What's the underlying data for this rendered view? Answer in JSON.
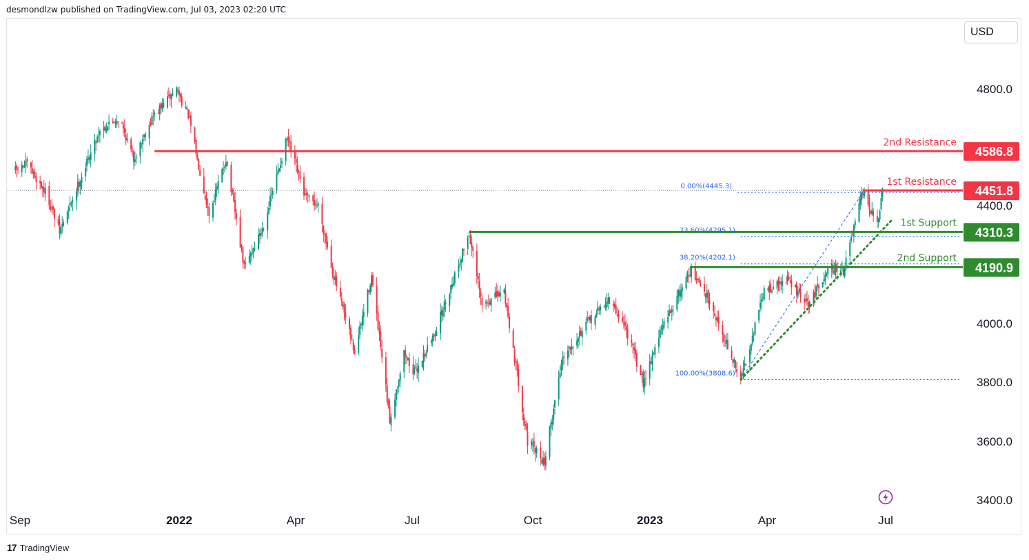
{
  "header": {
    "published": "desmondlzw published on TradingView.com, Jul 03, 2023 02:20 UTC"
  },
  "currency": "USD",
  "footer": {
    "brand": "TradingView"
  },
  "chart_data": {
    "type": "candlestick",
    "y_range": [
      3400,
      4950
    ],
    "y_ticks": [
      "4800.0",
      "4400.0",
      "4000.0",
      "3800.0",
      "3600.0",
      "3400.0"
    ],
    "y_tick_values": [
      4800,
      4400,
      4000,
      3800,
      3600,
      3400
    ],
    "x_ticks": [
      {
        "label": "Sep",
        "bold": false
      },
      {
        "label": "2022",
        "bold": true
      },
      {
        "label": "Apr",
        "bold": false
      },
      {
        "label": "Jul",
        "bold": false
      },
      {
        "label": "Oct",
        "bold": false
      },
      {
        "label": "2023",
        "bold": true
      },
      {
        "label": "Apr",
        "bold": false
      },
      {
        "label": "Jul",
        "bold": false
      }
    ],
    "colors": {
      "up": "#089981",
      "down": "#f23645",
      "resistance": "#f23645",
      "support": "#2e8b2e",
      "fib": "#2962ff"
    },
    "path_points": [
      [
        "2021-09-01",
        4520
      ],
      [
        "2021-09-10",
        4540
      ],
      [
        "2021-09-25",
        4440
      ],
      [
        "2021-10-05",
        4310
      ],
      [
        "2021-10-20",
        4480
      ],
      [
        "2021-11-05",
        4660
      ],
      [
        "2021-11-20",
        4700
      ],
      [
        "2021-12-01",
        4560
      ],
      [
        "2021-12-15",
        4700
      ],
      [
        "2022-01-03",
        4800
      ],
      [
        "2022-01-12",
        4710
      ],
      [
        "2022-01-28",
        4370
      ],
      [
        "2022-02-10",
        4560
      ],
      [
        "2022-02-24",
        4190
      ],
      [
        "2022-03-10",
        4320
      ],
      [
        "2022-03-29",
        4630
      ],
      [
        "2022-04-12",
        4430
      ],
      [
        "2022-04-22",
        4400
      ],
      [
        "2022-05-04",
        4160
      ],
      [
        "2022-05-20",
        3900
      ],
      [
        "2022-06-02",
        4160
      ],
      [
        "2022-06-16",
        3670
      ],
      [
        "2022-06-27",
        3900
      ],
      [
        "2022-07-05",
        3830
      ],
      [
        "2022-07-20",
        3960
      ],
      [
        "2022-08-16",
        4305
      ],
      [
        "2022-08-26",
        4060
      ],
      [
        "2022-09-12",
        4110
      ],
      [
        "2022-09-30",
        3600
      ],
      [
        "2022-10-13",
        3530
      ],
      [
        "2022-10-27",
        3890
      ],
      [
        "2022-11-15",
        4000
      ],
      [
        "2022-12-01",
        4080
      ],
      [
        "2022-12-14",
        3990
      ],
      [
        "2022-12-28",
        3800
      ],
      [
        "2023-01-10",
        3970
      ],
      [
        "2023-02-02",
        4180
      ],
      [
        "2023-02-17",
        4080
      ],
      [
        "2023-03-09",
        3850
      ],
      [
        "2023-03-13",
        3808
      ],
      [
        "2023-03-31",
        4110
      ],
      [
        "2023-04-18",
        4150
      ],
      [
        "2023-05-04",
        4060
      ],
      [
        "2023-05-19",
        4190
      ],
      [
        "2023-05-31",
        4180
      ],
      [
        "2023-06-15",
        4445
      ],
      [
        "2023-06-26",
        4330
      ],
      [
        "2023-06-30",
        4450
      ]
    ],
    "levels": [
      {
        "name": "2nd Resistance",
        "value": 4586.8,
        "badge": "4586.8",
        "kind": "resistance",
        "start": "2021-12-17"
      },
      {
        "name": "1st Resistance",
        "value": 4451.8,
        "badge": "4451.8",
        "kind": "resistance",
        "start": "2023-06-15"
      },
      {
        "name": "1st Support",
        "value": 4310.3,
        "badge": "4310.3",
        "kind": "support",
        "start": "2022-08-16"
      },
      {
        "name": "2nd Support",
        "value": 4190.9,
        "badge": "4190.9",
        "kind": "support",
        "start": "2023-02-02"
      }
    ],
    "fibonacci": [
      {
        "label": "0.00%(4445.3)",
        "value": 4445.3
      },
      {
        "label": "23.60%(4295.1)",
        "value": 4295.1
      },
      {
        "label": "38.20%(4202.1)",
        "value": 4202.1
      },
      {
        "label": "100.00%(3808.6)",
        "value": 3808.6
      }
    ],
    "fib_from": {
      "date": "2023-03-13",
      "value": 3808.6
    },
    "fib_to": {
      "date": "2023-06-15",
      "value": 4445.3
    },
    "trendline": [
      {
        "date": "2023-03-13",
        "value": 3808.6
      },
      {
        "date": "2023-07-07",
        "value": 4350
      }
    ],
    "reference_line": 4451.8
  }
}
